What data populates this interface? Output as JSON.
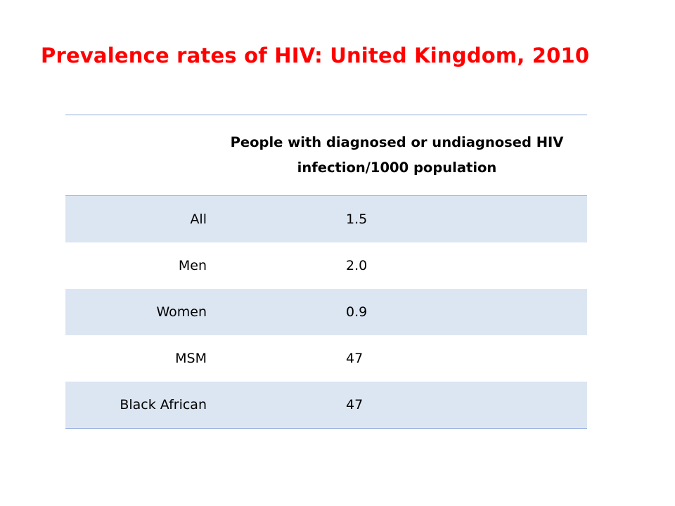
{
  "slide": {
    "title": "Prevalence rates of HIV: United Kingdom, 2010"
  },
  "table": {
    "headers": [
      "",
      "People with diagnosed or undiagnosed HIV infection/1000 population"
    ],
    "rows": [
      {
        "label": "All",
        "value": "1.5"
      },
      {
        "label": "Men",
        "value": "2.0"
      },
      {
        "label": "Women",
        "value": "0.9"
      },
      {
        "label": "MSM",
        "value": "47"
      },
      {
        "label": "Black African",
        "value": "47"
      }
    ]
  },
  "colors": {
    "title": "#ff0000",
    "row_band": "#dce6f2",
    "rule": "#8eaadb"
  }
}
